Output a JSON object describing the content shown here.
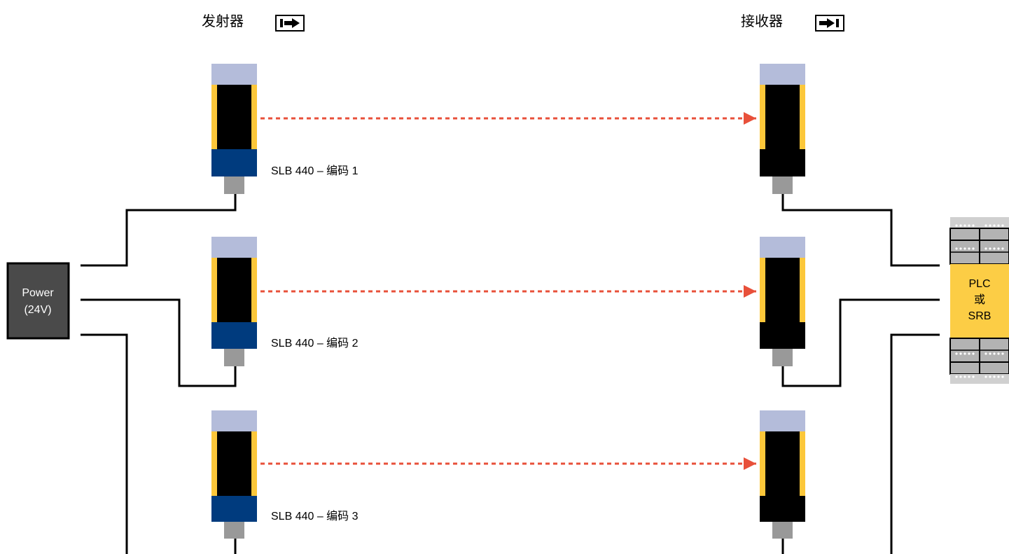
{
  "header": {
    "emitter_label": "发射器",
    "receiver_label": "接收器"
  },
  "power": {
    "line1": "Power",
    "line2": "(24V)"
  },
  "controller": {
    "line1": "PLC",
    "line2": "或",
    "line3": "SRB"
  },
  "pairs": [
    {
      "label": "SLB 440 – 编码 1"
    },
    {
      "label": "SLB 440 – 编码 2"
    },
    {
      "label": "SLB 440 – 编码 3"
    }
  ],
  "colors": {
    "wire": "#000000",
    "beam": "#e8503a",
    "sensor_top": "#b4bcda",
    "sensor_body": "#000000",
    "sensor_side": "#fcc73a",
    "emitter_base": "#003b7e",
    "receiver_base": "#000000",
    "connector": "#999999",
    "power_fill": "#4a4a4a",
    "controller_fill": "#fccd45",
    "terminal_fill": "#b3b3b3"
  },
  "icons": {
    "emitter": "arrow-right-from-bar-icon",
    "receiver": "arrow-right-to-bar-icon"
  }
}
